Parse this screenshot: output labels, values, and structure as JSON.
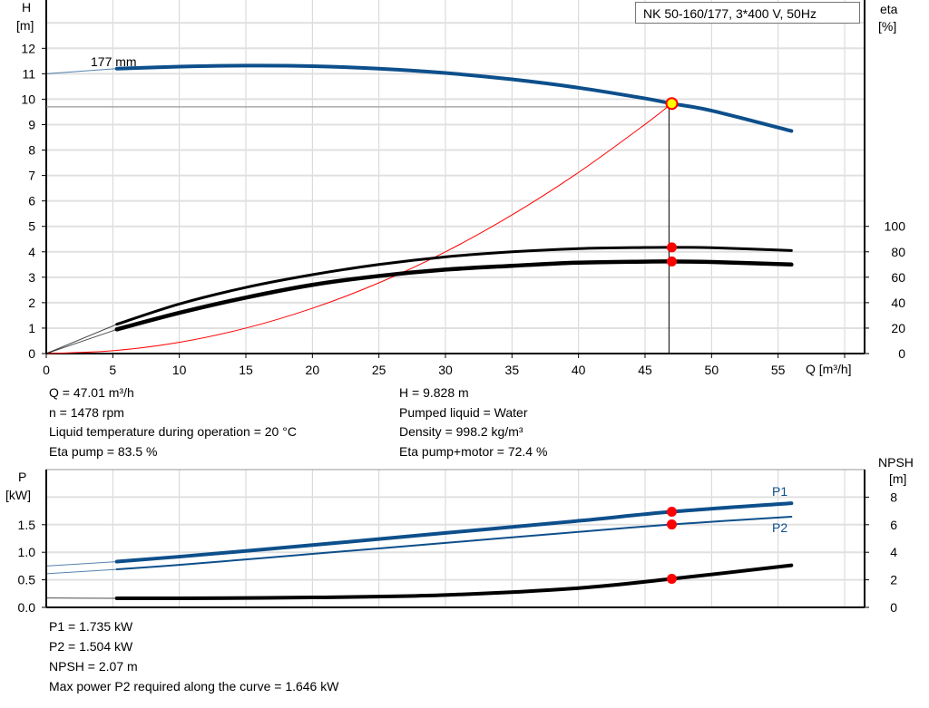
{
  "chart_data": [
    {
      "type": "line",
      "title": "NK 50-160/177, 3*400 V, 50Hz",
      "xlabel": "Q [m³/h]",
      "ylabel_left": [
        "H",
        "[m]"
      ],
      "ylabel_right": [
        "eta",
        "[%]"
      ],
      "xlim": [
        0,
        61.5
      ],
      "ylim_left": [
        0,
        13.9
      ],
      "ylim_right": [
        0,
        100
      ],
      "x_ticks": [
        "0",
        "5",
        "10",
        "15",
        "20",
        "25",
        "30",
        "35",
        "40",
        "45",
        "50",
        "55"
      ],
      "y_ticks_left": [
        "0",
        "1",
        "2",
        "3",
        "4",
        "5",
        "6",
        "7",
        "8",
        "9",
        "10",
        "11",
        "12"
      ],
      "y_ticks_right": [
        "0",
        "20",
        "40",
        "60",
        "80",
        "100"
      ],
      "grid": true,
      "curve_label": "177 mm",
      "series": [
        {
          "axis": "H",
          "color": "#0d4f8b",
          "x": [
            0,
            5.3,
            10,
            15,
            20,
            25,
            30,
            35,
            40,
            45,
            47,
            50,
            56
          ],
          "y": [
            11.0,
            11.2,
            11.28,
            11.32,
            11.3,
            11.2,
            11.03,
            10.78,
            10.45,
            10.03,
            9.83,
            9.55,
            8.75
          ]
        },
        {
          "axis": "eta",
          "color": "#000000",
          "x": [
            0,
            5.3,
            10,
            15,
            20,
            25,
            30,
            35,
            40,
            45,
            47,
            50,
            56
          ],
          "y": [
            0,
            23,
            39,
            52,
            62,
            70,
            76,
            80,
            82.5,
            83.4,
            83.5,
            83.2,
            81
          ]
        },
        {
          "axis": "eta",
          "color": "#000000",
          "x": [
            0,
            5.3,
            10,
            15,
            20,
            25,
            30,
            35,
            40,
            45,
            47,
            50,
            56
          ],
          "y": [
            0,
            19,
            32,
            44,
            54,
            61,
            66,
            69,
            71.5,
            72.3,
            72.4,
            72,
            70
          ]
        },
        {
          "axis": "H",
          "color": "#ff0000",
          "x": [
            0,
            5,
            10,
            15,
            20,
            25,
            30,
            35,
            40,
            45,
            47
          ],
          "y": [
            0,
            0.11,
            0.44,
            1.0,
            1.78,
            2.78,
            4.0,
            5.45,
            7.12,
            9.01,
            9.83
          ]
        }
      ],
      "operating_point": {
        "Q": 47.01,
        "H": 9.828
      }
    },
    {
      "type": "line",
      "xlim": [
        0,
        61.5
      ],
      "ylabel_left": [
        "P",
        "[kW]"
      ],
      "ylabel_right": [
        "NPSH",
        "[m]"
      ],
      "ylim_left": [
        0,
        2.5
      ],
      "ylim_right": [
        0,
        10
      ],
      "y_ticks_left": [
        "0.0",
        "0.5",
        "1.0",
        "1.5"
      ],
      "y_ticks_right": [
        "0",
        "2",
        "4",
        "6",
        "8"
      ],
      "grid": true,
      "series": [
        {
          "name": "P1",
          "axis": "P",
          "color": "#0d4f8b",
          "x": [
            0,
            5.3,
            10,
            20,
            30,
            40,
            47,
            56
          ],
          "y": [
            0.75,
            0.83,
            0.92,
            1.13,
            1.35,
            1.57,
            1.735,
            1.89
          ]
        },
        {
          "name": "P2",
          "axis": "P",
          "color": "#0d4f8b",
          "x": [
            0,
            5.3,
            10,
            20,
            30,
            40,
            47,
            56
          ],
          "y": [
            0.61,
            0.69,
            0.77,
            0.97,
            1.17,
            1.37,
            1.504,
            1.645
          ]
        },
        {
          "axis": "NPSH",
          "color": "#000000",
          "x": [
            0,
            5.3,
            10,
            20,
            30,
            40,
            47,
            56
          ],
          "y": [
            0.68,
            0.66,
            0.66,
            0.72,
            0.9,
            1.4,
            2.07,
            3.05
          ]
        }
      ]
    }
  ],
  "info_top": {
    "left": [
      "Q = 47.01 m³/h",
      "n = 1478 rpm",
      "Liquid temperature during operation = 20 °C",
      "Eta pump = 83.5 %"
    ],
    "right": [
      "H = 9.828 m",
      "Pumped liquid = Water",
      "Density = 998.2 kg/m³",
      "Eta pump+motor = 72.4 %"
    ]
  },
  "info_bottom": [
    "P1 = 1.735 kW",
    "P2 = 1.504 kW",
    "NPSH = 2.07 m",
    "Max power P2 required along the curve = 1.646 kW"
  ]
}
